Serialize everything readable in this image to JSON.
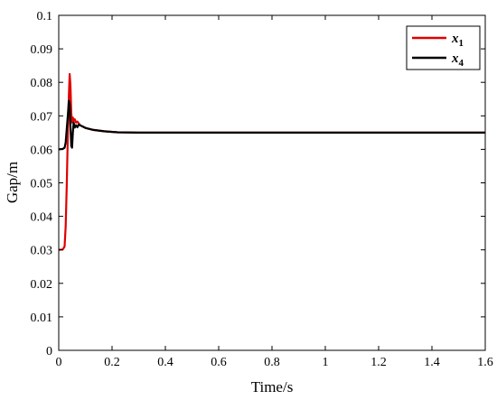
{
  "chart_data": {
    "type": "line",
    "xlabel": "Time/s",
    "ylabel": "Gap/m",
    "xlim": [
      0,
      1.6
    ],
    "ylim": [
      0,
      0.1
    ],
    "xticks": [
      "0",
      "0.2",
      "0.4",
      "0.6",
      "0.8",
      "1",
      "1.2",
      "1.4",
      "1.6"
    ],
    "yticks": [
      "0",
      "0.01",
      "0.02",
      "0.03",
      "0.04",
      "0.05",
      "0.06",
      "0.07",
      "0.08",
      "0.09",
      "0.1"
    ],
    "grid": false,
    "legend_position": "top-right",
    "series": [
      {
        "name": "x1",
        "label_base": "x",
        "label_sub": "1",
        "color": "#e00000",
        "x": [
          0,
          0.015,
          0.022,
          0.026,
          0.03,
          0.034,
          0.038,
          0.041,
          0.044,
          0.047,
          0.05,
          0.053,
          0.056,
          0.06,
          0.065,
          0.07,
          0.08,
          0.1,
          0.13,
          0.17,
          0.22,
          0.3,
          0.5,
          0.8,
          1.2,
          1.6
        ],
        "y": [
          0.03,
          0.0301,
          0.031,
          0.037,
          0.049,
          0.064,
          0.076,
          0.0825,
          0.079,
          0.071,
          0.068,
          0.0695,
          0.0685,
          0.069,
          0.068,
          0.0683,
          0.0672,
          0.0664,
          0.0658,
          0.0654,
          0.0651,
          0.065,
          0.065,
          0.065,
          0.065,
          0.065
        ]
      },
      {
        "name": "x4",
        "label_base": "x",
        "label_sub": "4",
        "color": "#000000",
        "x": [
          0,
          0.015,
          0.022,
          0.026,
          0.03,
          0.034,
          0.038,
          0.041,
          0.044,
          0.047,
          0.05,
          0.053,
          0.056,
          0.06,
          0.065,
          0.07,
          0.075,
          0.08,
          0.09,
          0.1,
          0.13,
          0.17,
          0.22,
          0.3,
          0.5,
          0.8,
          1.2,
          1.6
        ],
        "y": [
          0.06,
          0.0601,
          0.0605,
          0.062,
          0.066,
          0.07,
          0.0745,
          0.0735,
          0.067,
          0.061,
          0.0605,
          0.065,
          0.068,
          0.0665,
          0.0672,
          0.0666,
          0.0674,
          0.0672,
          0.0668,
          0.0664,
          0.0658,
          0.0654,
          0.0651,
          0.065,
          0.065,
          0.065,
          0.065,
          0.065
        ]
      }
    ]
  }
}
